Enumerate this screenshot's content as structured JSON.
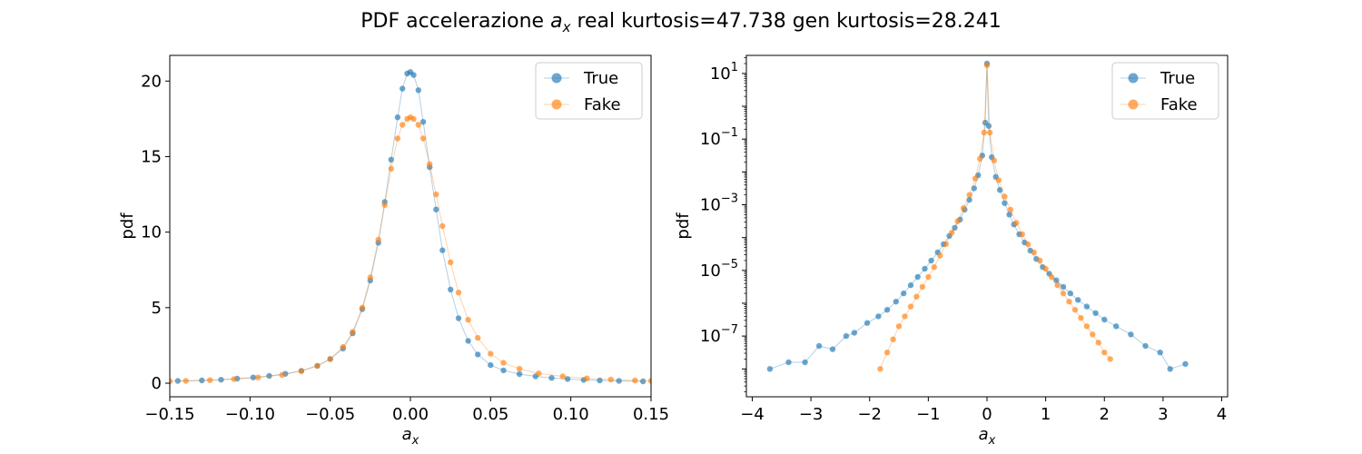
{
  "figure": {
    "title": {
      "prefix": "PDF accelerazione ",
      "symbol": "a",
      "subscript": "x",
      "suffix": " real kurtosis=47.738    gen kurtosis=28.241"
    }
  },
  "colors": {
    "true": "#1f77b4",
    "fake": "#ff7f0e"
  },
  "chart_data": [
    {
      "type": "scatter",
      "subplot": "left",
      "xlabel": {
        "symbol": "a",
        "subscript": "x"
      },
      "ylabel": "pdf",
      "xlim": [
        -0.15,
        0.15
      ],
      "ylim": [
        -0.9,
        21.7
      ],
      "yscale": "linear",
      "xticks": [
        -0.15,
        -0.1,
        -0.05,
        0.0,
        0.05,
        0.1,
        0.15
      ],
      "xtick_labels": [
        "−0.15",
        "−0.10",
        "−0.05",
        "0.00",
        "0.05",
        "0.10",
        "0.15"
      ],
      "yticks": [
        0,
        5,
        10,
        15,
        20
      ],
      "ytick_labels": [
        "0",
        "5",
        "10",
        "15",
        "20"
      ],
      "legend_position": "top-right",
      "series": [
        {
          "name": "True",
          "color": "#1f77b4",
          "x": [
            -0.145,
            -0.13,
            -0.118,
            -0.108,
            -0.098,
            -0.088,
            -0.078,
            -0.068,
            -0.058,
            -0.05,
            -0.042,
            -0.036,
            -0.03,
            -0.025,
            -0.02,
            -0.016,
            -0.012,
            -0.008,
            -0.005,
            -0.002,
            0.0,
            0.002,
            0.005,
            0.008,
            0.012,
            0.016,
            0.02,
            0.025,
            0.03,
            0.036,
            0.042,
            0.05,
            0.058,
            0.068,
            0.078,
            0.088,
            0.098,
            0.108,
            0.118,
            0.13,
            0.145
          ],
          "y": [
            0.15,
            0.18,
            0.23,
            0.3,
            0.38,
            0.48,
            0.62,
            0.82,
            1.15,
            1.6,
            2.3,
            3.3,
            4.9,
            6.8,
            9.3,
            12.0,
            14.8,
            17.6,
            19.5,
            20.5,
            20.6,
            20.4,
            19.4,
            17.3,
            14.3,
            11.5,
            8.8,
            6.2,
            4.3,
            2.8,
            1.9,
            1.2,
            0.85,
            0.6,
            0.45,
            0.35,
            0.28,
            0.22,
            0.18,
            0.15,
            0.12
          ]
        },
        {
          "name": "Fake",
          "color": "#ff7f0e",
          "x": [
            -0.15,
            -0.14,
            -0.125,
            -0.11,
            -0.095,
            -0.08,
            -0.068,
            -0.058,
            -0.05,
            -0.042,
            -0.036,
            -0.03,
            -0.025,
            -0.02,
            -0.016,
            -0.012,
            -0.008,
            -0.005,
            -0.002,
            0.0,
            0.002,
            0.005,
            0.008,
            0.012,
            0.016,
            0.02,
            0.025,
            0.03,
            0.036,
            0.042,
            0.05,
            0.058,
            0.068,
            0.08,
            0.095,
            0.11,
            0.125,
            0.14,
            0.15
          ],
          "y": [
            0.12,
            0.15,
            0.2,
            0.27,
            0.38,
            0.55,
            0.8,
            1.15,
            1.6,
            2.4,
            3.4,
            5.0,
            7.0,
            9.5,
            11.8,
            14.2,
            16.2,
            17.1,
            17.5,
            17.6,
            17.5,
            17.1,
            16.2,
            14.5,
            12.5,
            10.4,
            8.0,
            6.0,
            4.2,
            3.0,
            1.95,
            1.35,
            0.95,
            0.65,
            0.45,
            0.32,
            0.24,
            0.18,
            0.15
          ]
        }
      ]
    },
    {
      "type": "scatter",
      "subplot": "right",
      "xlabel": {
        "symbol": "a",
        "subscript": "x"
      },
      "ylabel": "pdf",
      "xlim": [
        -4.1,
        4.1
      ],
      "ylim_log10": [
        -8.85,
        1.55
      ],
      "yscale": "log",
      "xticks": [
        -4,
        -3,
        -2,
        -1,
        0,
        1,
        2,
        3,
        4
      ],
      "xtick_labels": [
        "−4",
        "−3",
        "−2",
        "−1",
        "0",
        "1",
        "2",
        "3",
        "4"
      ],
      "yticks_log10": [
        1,
        -1,
        -3,
        -5,
        -7
      ],
      "ytick_labels": [
        {
          "base": "10",
          "exp": "1"
        },
        {
          "base": "10",
          "exp": "−1"
        },
        {
          "base": "10",
          "exp": "−3"
        },
        {
          "base": "10",
          "exp": "−5"
        },
        {
          "base": "10",
          "exp": "−7"
        }
      ],
      "legend_position": "top-right",
      "series": [
        {
          "name": "True",
          "color": "#1f77b4",
          "x": [
            -3.7,
            -3.38,
            -3.1,
            -2.86,
            -2.63,
            -2.4,
            -2.26,
            -2.04,
            -1.85,
            -1.7,
            -1.55,
            -1.42,
            -1.3,
            -1.18,
            -1.06,
            -0.95,
            -0.84,
            -0.74,
            -0.64,
            -0.55,
            -0.46,
            -0.38,
            -0.3,
            -0.22,
            -0.15,
            -0.08,
            -0.03,
            0.0,
            0.03,
            0.08,
            0.15,
            0.22,
            0.3,
            0.38,
            0.46,
            0.55,
            0.64,
            0.74,
            0.84,
            0.95,
            1.06,
            1.18,
            1.3,
            1.42,
            1.55,
            1.7,
            1.85,
            2.0,
            2.2,
            2.45,
            2.7,
            2.95,
            3.12,
            3.38
          ],
          "logy": [
            -8.0,
            -7.8,
            -7.8,
            -7.3,
            -7.4,
            -7.0,
            -6.9,
            -6.6,
            -6.4,
            -6.2,
            -5.95,
            -5.7,
            -5.45,
            -5.2,
            -4.95,
            -4.7,
            -4.45,
            -4.2,
            -3.95,
            -3.7,
            -3.45,
            -3.15,
            -2.85,
            -2.5,
            -2.1,
            -1.5,
            -0.5,
            1.3,
            -0.6,
            -1.55,
            -2.15,
            -2.55,
            -2.95,
            -3.3,
            -3.6,
            -3.9,
            -4.15,
            -4.4,
            -4.65,
            -4.9,
            -5.1,
            -5.3,
            -5.5,
            -5.7,
            -5.9,
            -6.1,
            -6.3,
            -6.5,
            -6.7,
            -6.95,
            -7.3,
            -7.5,
            -8.0,
            -7.85
          ]
        },
        {
          "name": "Fake",
          "color": "#ff7f0e",
          "x": [
            -1.82,
            -1.7,
            -1.6,
            -1.5,
            -1.4,
            -1.3,
            -1.2,
            -1.1,
            -1.0,
            -0.9,
            -0.8,
            -0.7,
            -0.6,
            -0.5,
            -0.4,
            -0.3,
            -0.2,
            -0.12,
            -0.05,
            0.0,
            0.05,
            0.12,
            0.2,
            0.3,
            0.4,
            0.5,
            0.6,
            0.7,
            0.8,
            0.9,
            1.0,
            1.1,
            1.2,
            1.3,
            1.4,
            1.5,
            1.6,
            1.7,
            1.8,
            1.9,
            2.0,
            2.1
          ],
          "logy": [
            -8.0,
            -7.5,
            -7.1,
            -6.7,
            -6.4,
            -6.1,
            -5.8,
            -5.5,
            -5.2,
            -4.9,
            -4.55,
            -4.2,
            -3.85,
            -3.5,
            -3.1,
            -2.7,
            -2.2,
            -1.6,
            -0.8,
            1.25,
            -0.8,
            -1.65,
            -2.25,
            -2.75,
            -3.15,
            -3.55,
            -3.9,
            -4.2,
            -4.45,
            -4.7,
            -4.95,
            -5.2,
            -5.45,
            -5.7,
            -5.95,
            -6.2,
            -6.45,
            -6.7,
            -6.95,
            -7.2,
            -7.5,
            -7.7
          ]
        }
      ]
    }
  ]
}
